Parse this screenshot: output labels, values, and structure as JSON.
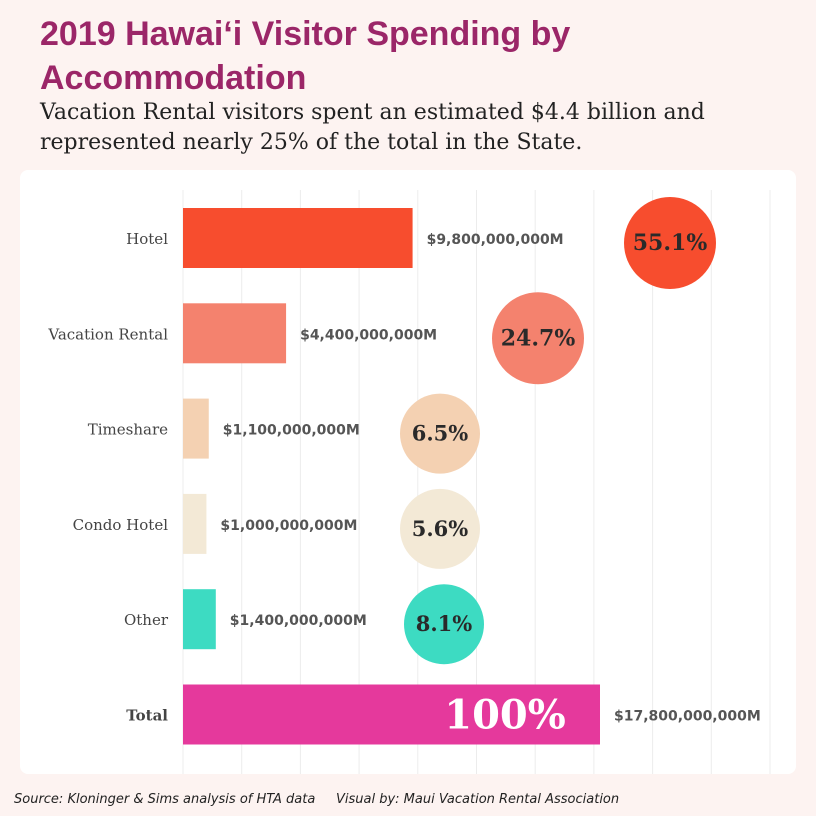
{
  "header": {
    "title": "2019 Hawai‘i Visitor Spending by Accommodation",
    "subtitle": "Vacation Rental visitors spent an estimated $4.4 billion and represented nearly 25% of the total in the State."
  },
  "footer": {
    "source": "Source: Kloninger & Sims analysis of HTA data",
    "credit": "Visual by: Maui Vacation Rental Association"
  },
  "chart_data": {
    "type": "bar",
    "orientation": "horizontal",
    "title": "2019 Hawai‘i Visitor Spending by Accommodation",
    "xlabel": "",
    "ylabel": "",
    "xlim": [
      0,
      17800000000
    ],
    "grid": true,
    "categories": [
      "Hotel",
      "Vacation Rental",
      "Timeshare",
      "Condo Hotel",
      "Other",
      "Total"
    ],
    "values": [
      9800000000,
      4400000000,
      1100000000,
      1000000000,
      1400000000,
      17800000000
    ],
    "value_labels": [
      "$9,800,000,000M",
      "$4,400,000,000M",
      "$1,100,000,000M",
      "$1,000,000,000M",
      "$1,400,000,000M",
      "$17,800,000,000M"
    ],
    "percent_labels": [
      "55.1%",
      "24.7%",
      "6.5%",
      "5.6%",
      "8.1%",
      "100%"
    ],
    "colors": [
      "#f74d2e",
      "#f4826e",
      "#f4d1b2",
      "#f3e9d6",
      "#3ddbc2",
      "#e5399c"
    ]
  }
}
